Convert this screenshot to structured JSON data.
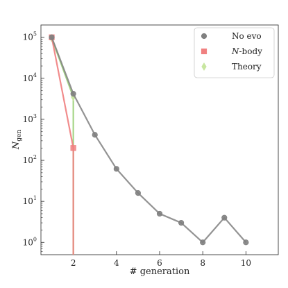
{
  "chart_data": {
    "type": "line",
    "title": "",
    "xlabel": "# generation",
    "ylabel": "N",
    "ylabel_sub": "gen",
    "xlim": [
      0.5,
      11.5
    ],
    "ylim_log10": [
      -0.3,
      5.3
    ],
    "yscale": "log",
    "grid": false,
    "legend_position": "top-right",
    "x_ticks": [
      {
        "value": 2,
        "label": "2"
      },
      {
        "value": 4,
        "label": "4"
      },
      {
        "value": 6,
        "label": "6"
      },
      {
        "value": 8,
        "label": "8"
      },
      {
        "value": 10,
        "label": "10"
      }
    ],
    "y_ticks": [
      {
        "exp": 0,
        "base": "10",
        "sup": "0"
      },
      {
        "exp": 1,
        "base": "10",
        "sup": "1"
      },
      {
        "exp": 2,
        "base": "10",
        "sup": "2"
      },
      {
        "exp": 3,
        "base": "10",
        "sup": "3"
      },
      {
        "exp": 4,
        "base": "10",
        "sup": "4"
      },
      {
        "exp": 5,
        "base": "10",
        "sup": "5"
      }
    ],
    "series": [
      {
        "name": "No evo",
        "italic_part": "",
        "marker": "circle",
        "color": "#808080",
        "points": [
          [
            1,
            100000
          ],
          [
            2,
            4200
          ],
          [
            3,
            420
          ],
          [
            4,
            62
          ],
          [
            5,
            16
          ],
          [
            6,
            5
          ],
          [
            7,
            3
          ],
          [
            8,
            1
          ],
          [
            9,
            4
          ],
          [
            10,
            1
          ]
        ],
        "drops_to_zero_after": false
      },
      {
        "name": "-body",
        "italic_part": "N",
        "marker": "square",
        "color": "#f08080",
        "points": [
          [
            1,
            100000
          ],
          [
            2,
            200
          ]
        ],
        "drops_to_zero_after": true
      },
      {
        "name": "Theory",
        "italic_part": "",
        "marker": "diamond",
        "color": "#c8e6a0",
        "points": [
          [
            1,
            95000
          ],
          [
            2,
            3500
          ]
        ],
        "drops_to_zero_after": true
      }
    ]
  }
}
